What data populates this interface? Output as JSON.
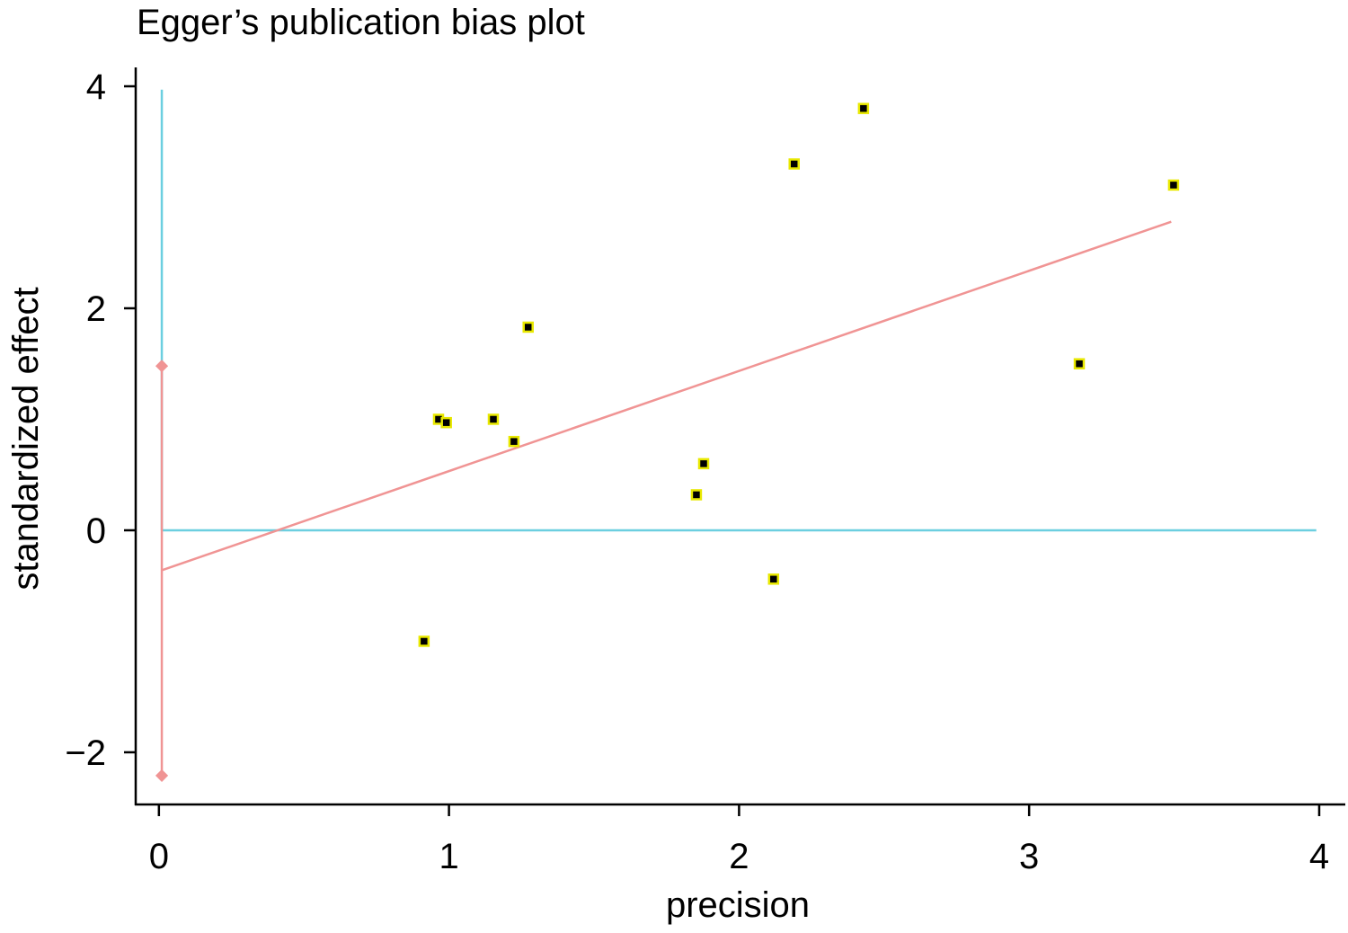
{
  "chart_data": {
    "type": "scatter",
    "title": "Egger’s publication bias plot",
    "x_label": "precision",
    "y_label": "standardized effect",
    "x": [
      0.914,
      0.964,
      0.991,
      1.153,
      1.224,
      1.273,
      1.853,
      1.878,
      2.119,
      2.19,
      2.429,
      3.173,
      3.498
    ],
    "values": [
      -1.0,
      1.0,
      0.97,
      1.0,
      0.8,
      1.83,
      0.32,
      0.6,
      -0.44,
      3.3,
      3.8,
      1.5,
      3.11
    ],
    "color": "#000000",
    "marker_edge_color": "#e8e800",
    "xlim": [
      -0.08,
      4.09
    ],
    "ylim": [
      -2.47,
      4.17
    ],
    "xticks": [
      0,
      1,
      2,
      3,
      4
    ],
    "yticks": [
      {
        "value": -2,
        "label": "−2"
      },
      0,
      2,
      4
    ],
    "regression": {
      "color": "#f09494",
      "x": [
        0.01,
        3.49
      ],
      "y": [
        -0.36,
        2.78
      ]
    },
    "intercept_ci": {
      "color": "#f09494",
      "x": [
        0.01,
        0.01
      ],
      "y": [
        -2.21,
        1.48
      ]
    },
    "reference_vertical": {
      "color": "#6ccfe0",
      "x": [
        0.01,
        0.01
      ],
      "y": [
        3.97,
        0
      ]
    },
    "reference_horizontal": {
      "color": "#6ccfe0",
      "x": [
        0.01,
        3.99
      ],
      "y": [
        0,
        0
      ]
    }
  }
}
